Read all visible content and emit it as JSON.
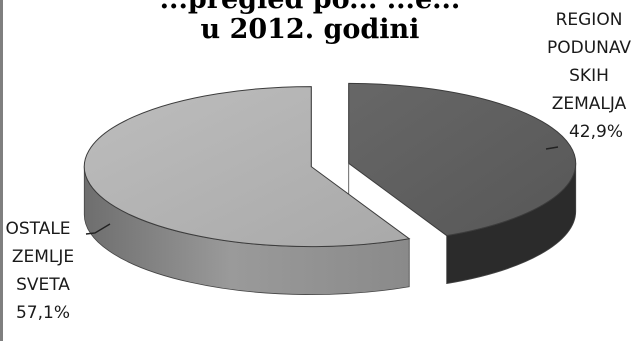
{
  "chart_data": {
    "type": "pie",
    "title": [
      "...pregled po... ...e...",
      "u 2012. godini"
    ],
    "style": "3d-exploded",
    "slices": [
      {
        "label_lines": [
          "REGION",
          "PODUNAV",
          "SKIH",
          "ZEMALJA"
        ],
        "value": 42.9,
        "value_text": "42,9%",
        "color": "#5f5f5f",
        "side_color": "#2b2b2b"
      },
      {
        "label_lines": [
          "OSTALE",
          "ZEMLJE",
          "SVETA"
        ],
        "value": 57.1,
        "value_text": "57,1%",
        "color": "#b3b3b3",
        "side_color": "#8a8a8a"
      }
    ]
  }
}
